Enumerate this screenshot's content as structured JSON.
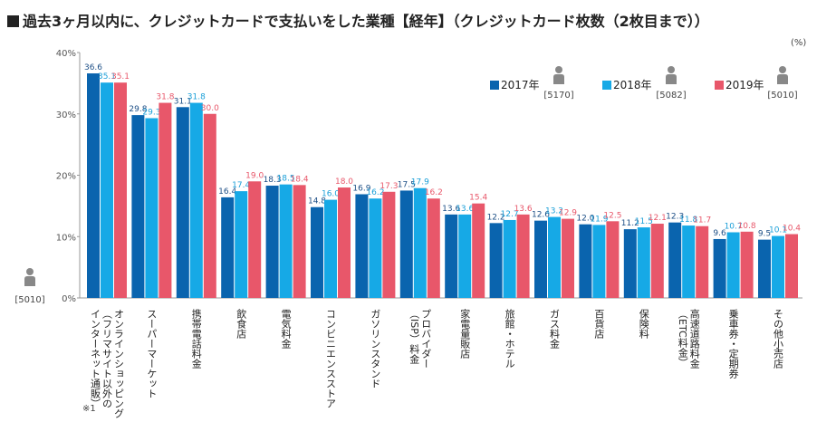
{
  "title": "過去3ヶ月以内に、クレジットカードで支払いをした業種【経年】（クレジットカード枚数（2枚目まで））",
  "unit_label": "(%)",
  "footnote": "※1",
  "base_label": "[5010]",
  "colors": {
    "s2017": "#0a64ae",
    "s2018": "#16a9e6",
    "s2019": "#e8576a",
    "icon": "#888888"
  },
  "chart_data": {
    "type": "bar",
    "title": "過去3ヶ月以内に、クレジットカードで支払いをした業種【経年】（クレジットカード枚数（2枚目まで））",
    "ylabel": "(%)",
    "ylim": [
      0,
      40
    ],
    "yticks": [
      "0%",
      "10%",
      "20%",
      "30%",
      "40%"
    ],
    "grid": false,
    "legend": "top-right",
    "categories": [
      "オンラインショッピング（フリマサイト以外のインターネット通販）",
      "スーパーマーケット",
      "携帯電話料金",
      "飲食店",
      "電気料金",
      "コンビニエンスストア",
      "ガソリンスタンド",
      "プロバイダー（ISP）料金",
      "家電量販店",
      "旅館・ホテル",
      "ガス料金",
      "百貨店",
      "保険料",
      "高速道路料金（ETC料金）",
      "乗車券・定期券",
      "その他小売店"
    ],
    "category_lines": [
      [
        "オンラインショッピング",
        "（フリマサイト以外の",
        "インターネット通販）"
      ],
      [
        "スーパーマーケット"
      ],
      [
        "携帯電話料金"
      ],
      [
        "飲食店"
      ],
      [
        "電気料金"
      ],
      [
        "コンビニエンスストア"
      ],
      [
        "ガソリンスタンド"
      ],
      [
        "プロバイダー",
        "（ISP）料金"
      ],
      [
        "家電量販店"
      ],
      [
        "旅館・ホテル"
      ],
      [
        "ガス料金"
      ],
      [
        "百貨店"
      ],
      [
        "保険料"
      ],
      [
        "高速道路料金",
        "（ETC料金）"
      ],
      [
        "乗車券・定期券"
      ],
      [
        "その他小売店"
      ]
    ],
    "series": [
      {
        "name": "2017年",
        "n": "[5170]",
        "values": [
          36.6,
          29.8,
          31.1,
          16.4,
          18.3,
          14.8,
          16.9,
          17.5,
          13.6,
          12.2,
          12.6,
          12.0,
          11.2,
          12.3,
          9.6,
          9.5
        ]
      },
      {
        "name": "2018年",
        "n": "[5082]",
        "values": [
          35.1,
          29.3,
          31.8,
          17.4,
          18.5,
          16.0,
          16.2,
          17.9,
          13.6,
          12.7,
          13.2,
          11.9,
          11.5,
          11.8,
          10.7,
          10.1
        ]
      },
      {
        "name": "2019年",
        "n": "[5010]",
        "values": [
          35.1,
          31.8,
          30.0,
          19.0,
          18.4,
          18.0,
          17.3,
          16.2,
          15.4,
          13.6,
          12.9,
          12.5,
          12.1,
          11.7,
          10.8,
          10.4
        ]
      }
    ]
  }
}
